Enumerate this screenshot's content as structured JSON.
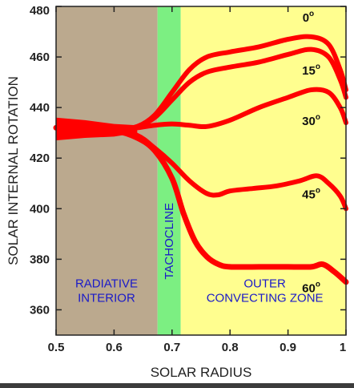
{
  "chart_data": {
    "type": "line",
    "xlabel": "SOLAR RADIUS",
    "ylabel": "SOLAR INTERNAL ROTATION",
    "xlim": [
      0.5,
      1.0
    ],
    "ylim": [
      350,
      480
    ],
    "x_ticks": [
      {
        "value": 0.5,
        "label": "0.5"
      },
      {
        "value": 0.6,
        "label": "0.6"
      },
      {
        "value": 0.7,
        "label": "0.7"
      },
      {
        "value": 0.8,
        "label": "0.8"
      },
      {
        "value": 0.9,
        "label": "0.9"
      },
      {
        "value": 1.0,
        "label": "1"
      }
    ],
    "y_ticks": [
      {
        "value": 360,
        "label": "360"
      },
      {
        "value": 380,
        "label": "380"
      },
      {
        "value": 400,
        "label": "400"
      },
      {
        "value": 420,
        "label": "420"
      },
      {
        "value": 440,
        "label": "440"
      },
      {
        "value": 460,
        "label": "460"
      },
      {
        "value": 480,
        "label": "480"
      }
    ],
    "regions": [
      {
        "label_lines": [
          "RADIATIVE",
          "INTERIOR"
        ],
        "x_range": [
          0.5,
          0.675
        ],
        "color": "#bba98e",
        "label_pos": [
          0.587,
          366
        ]
      },
      {
        "label_lines": [
          "TACHOCLINE"
        ],
        "x_range": [
          0.675,
          0.715
        ],
        "color": "#7cef82",
        "vertical": true,
        "label_pos": [
          0.695,
          372
        ]
      },
      {
        "label_lines": [
          "OUTER",
          "CONVECTING ZONE"
        ],
        "x_range": [
          0.715,
          1.0
        ],
        "color": "#fffe8f",
        "label_pos": [
          0.86,
          366
        ]
      }
    ],
    "line_color": "#ff0000",
    "series": [
      {
        "label": "0",
        "label_pos": [
          0.935,
          474
        ],
        "thickness": 3.0,
        "x": [
          0.5,
          0.55,
          0.6,
          0.64,
          0.67,
          0.7,
          0.73,
          0.76,
          0.8,
          0.85,
          0.9,
          0.94,
          0.97,
          0.99,
          1.0
        ],
        "y": [
          432,
          432,
          431,
          432.5,
          437,
          446,
          455,
          460,
          462,
          464,
          467,
          468,
          465,
          455,
          447
        ]
      },
      {
        "label": "15",
        "label_pos": [
          0.94,
          453
        ],
        "thickness": 3.0,
        "x": [
          0.5,
          0.55,
          0.6,
          0.64,
          0.67,
          0.7,
          0.73,
          0.76,
          0.8,
          0.85,
          0.9,
          0.94,
          0.97,
          0.99,
          1.0
        ],
        "y": [
          432,
          432,
          431,
          432.5,
          436,
          443,
          450,
          454,
          456,
          458,
          461,
          463,
          460,
          451,
          444
        ]
      },
      {
        "label": "30",
        "label_pos": [
          0.94,
          433
        ],
        "thickness": 3.0,
        "x": [
          0.5,
          0.55,
          0.6,
          0.64,
          0.67,
          0.7,
          0.73,
          0.76,
          0.8,
          0.85,
          0.9,
          0.94,
          0.97,
          0.99,
          1.0
        ],
        "y": [
          432,
          432,
          431,
          432,
          433,
          433.5,
          433,
          432.5,
          435,
          440,
          444,
          447,
          446,
          440,
          434
        ]
      },
      {
        "label": "45",
        "label_pos": [
          0.94,
          404
        ],
        "thickness": 3.0,
        "x": [
          0.5,
          0.55,
          0.6,
          0.64,
          0.67,
          0.7,
          0.73,
          0.76,
          0.78,
          0.8,
          0.84,
          0.88,
          0.92,
          0.95,
          0.97,
          0.99,
          1.0
        ],
        "y": [
          432,
          432,
          431,
          429,
          424,
          418,
          411,
          406,
          405.5,
          407,
          408,
          409,
          411,
          413,
          410,
          405,
          400
        ]
      },
      {
        "label": "60",
        "label_pos": [
          0.94,
          367
        ],
        "thickness": 3.5,
        "x": [
          0.5,
          0.55,
          0.6,
          0.64,
          0.67,
          0.7,
          0.72,
          0.74,
          0.76,
          0.78,
          0.8,
          0.85,
          0.9,
          0.94,
          0.96,
          0.98,
          1.0
        ],
        "y": [
          432,
          432,
          431,
          428,
          423,
          412,
          398,
          387,
          381,
          378,
          377,
          377,
          377,
          377,
          378,
          375,
          371
        ]
      }
    ]
  }
}
